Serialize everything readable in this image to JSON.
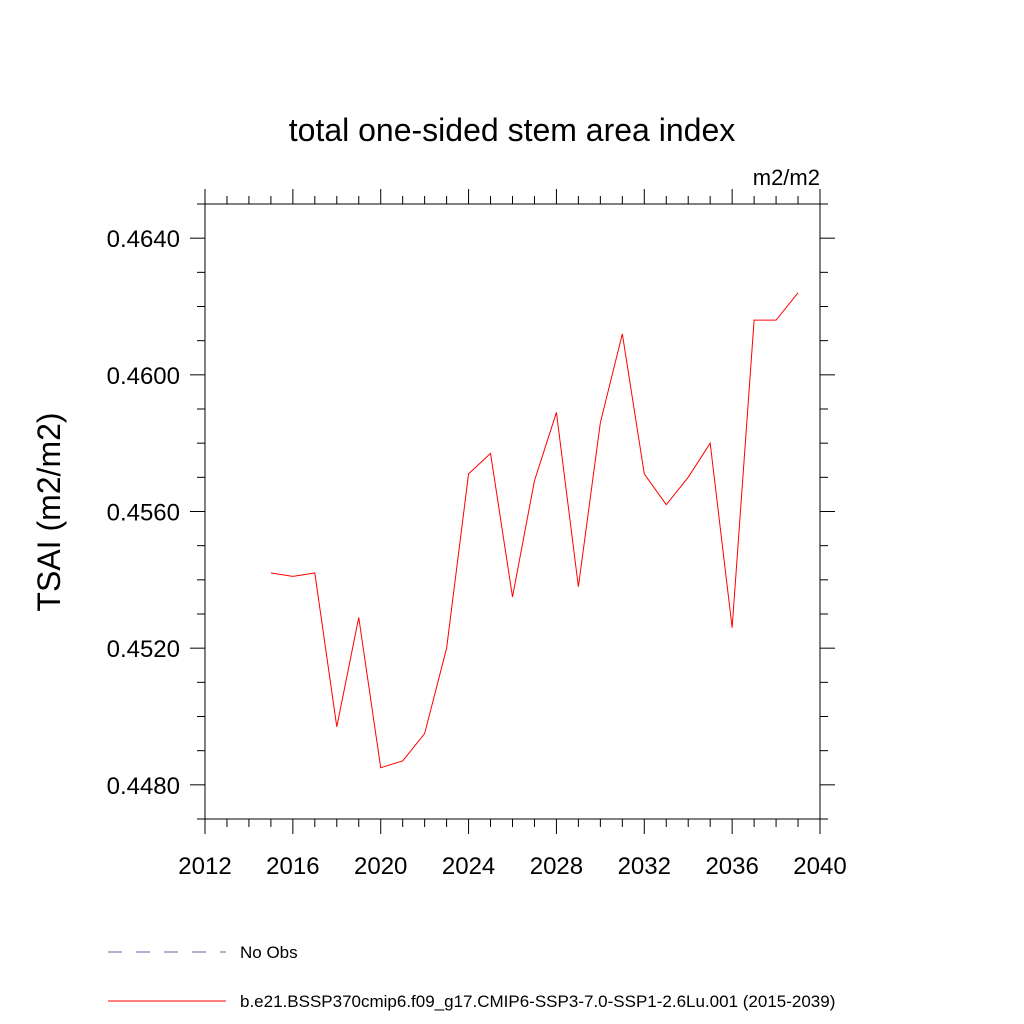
{
  "chart_data": {
    "type": "line",
    "title": "total one-sided stem area index",
    "units": "m2/m2",
    "ylabel": "TSAI  (m2/m2)",
    "xlabel": "",
    "xlim": [
      2012,
      2040
    ],
    "ylim": [
      0.447,
      0.465
    ],
    "xticks": [
      2012,
      2016,
      2020,
      2024,
      2028,
      2032,
      2036,
      2040
    ],
    "xtick_labels": [
      "2012",
      "2016",
      "2020",
      "2024",
      "2028",
      "2032",
      "2036",
      "2040"
    ],
    "yticks": [
      0.448,
      0.452,
      0.456,
      0.46,
      0.464
    ],
    "ytick_labels": [
      "0.4480",
      "0.4520",
      "0.4560",
      "0.4600",
      "0.4640"
    ],
    "y_minor_step": 0.001,
    "x_minor_step": 1,
    "series": [
      {
        "name": "b.e21.BSSP370cmip6.f09_g17.CMIP6-SSP3-7.0-SSP1-2.6Lu.001 (2015-2039)",
        "color": "#ff0000",
        "x": [
          2015,
          2016,
          2017,
          2018,
          2019,
          2020,
          2021,
          2022,
          2023,
          2024,
          2025,
          2026,
          2027,
          2028,
          2029,
          2030,
          2031,
          2032,
          2033,
          2034,
          2035,
          2036,
          2037,
          2038,
          2039
        ],
        "y": [
          0.4542,
          0.4541,
          0.4542,
          0.4497,
          0.4529,
          0.4485,
          0.4487,
          0.4495,
          0.452,
          0.4571,
          0.4577,
          0.4535,
          0.4569,
          0.4589,
          0.4538,
          0.4586,
          0.4612,
          0.4571,
          0.4562,
          0.457,
          0.458,
          0.4526,
          0.4616,
          0.4616,
          0.4624
        ]
      }
    ],
    "legend": [
      {
        "label": "No Obs",
        "style": "dashed",
        "color": "#6b5fa8"
      },
      {
        "label": "b.e21.BSSP370cmip6.f09_g17.CMIP6-SSP3-7.0-SSP1-2.6Lu.001 (2015-2039)",
        "style": "solid",
        "color": "#ff0000"
      }
    ],
    "legend_position": "bottom",
    "grid": false
  }
}
